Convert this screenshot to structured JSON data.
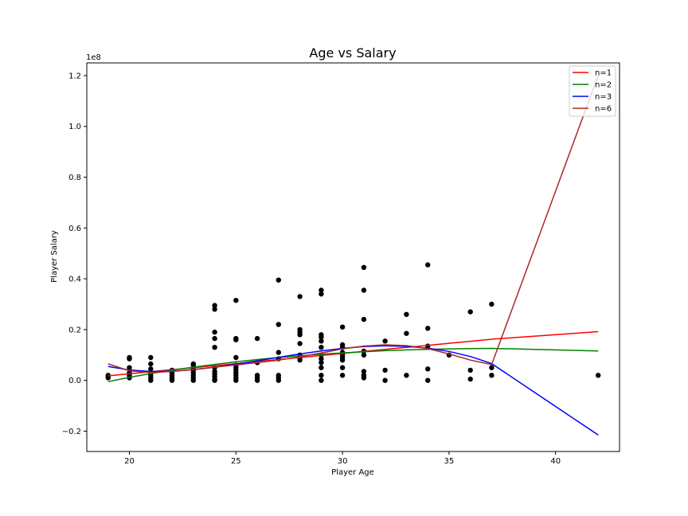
{
  "chart_data": {
    "type": "scatter",
    "title": "Age vs Salary",
    "xlabel": "Player Age",
    "ylabel": "Player Salary",
    "y_offset_label": "1e8",
    "xlim": [
      18,
      43
    ],
    "ylim": [
      -0.28,
      1.25
    ],
    "y_units": "1e8",
    "xticks": [
      20,
      25,
      30,
      35,
      40
    ],
    "yticks": [
      -0.2,
      0.0,
      0.2,
      0.4,
      0.6,
      0.8,
      1.0,
      1.2
    ],
    "ytick_labels": [
      "−0.2",
      "0.0",
      "0.2",
      "0.4",
      "0.6",
      "0.8",
      "1.0",
      "1.2"
    ],
    "grid": false,
    "legend_position": "top-right",
    "points": [
      [
        19,
        0.01
      ],
      [
        19,
        0.02
      ],
      [
        19,
        0.015
      ],
      [
        20,
        0.09
      ],
      [
        20,
        0.085
      ],
      [
        20,
        0.05
      ],
      [
        20,
        0.03
      ],
      [
        20,
        0.02
      ],
      [
        20,
        0.01
      ],
      [
        21,
        0.09
      ],
      [
        21,
        0.065
      ],
      [
        21,
        0.045
      ],
      [
        21,
        0.03
      ],
      [
        21,
        0.02
      ],
      [
        21,
        0.01
      ],
      [
        21,
        0.0
      ],
      [
        22,
        0.04
      ],
      [
        22,
        0.03
      ],
      [
        22,
        0.02
      ],
      [
        22,
        0.01
      ],
      [
        22,
        0.005
      ],
      [
        22,
        0.0
      ],
      [
        23,
        0.065
      ],
      [
        23,
        0.06
      ],
      [
        23,
        0.045
      ],
      [
        23,
        0.04
      ],
      [
        23,
        0.03
      ],
      [
        23,
        0.02
      ],
      [
        23,
        0.01
      ],
      [
        23,
        0.0
      ],
      [
        24,
        0.295
      ],
      [
        24,
        0.28
      ],
      [
        24,
        0.19
      ],
      [
        24,
        0.165
      ],
      [
        24,
        0.13
      ],
      [
        24,
        0.05
      ],
      [
        24,
        0.035
      ],
      [
        24,
        0.025
      ],
      [
        24,
        0.015
      ],
      [
        24,
        0.005
      ],
      [
        24,
        0.0
      ],
      [
        25,
        0.315
      ],
      [
        25,
        0.165
      ],
      [
        25,
        0.16
      ],
      [
        25,
        0.09
      ],
      [
        25,
        0.06
      ],
      [
        25,
        0.05
      ],
      [
        25,
        0.04
      ],
      [
        25,
        0.03
      ],
      [
        25,
        0.02
      ],
      [
        25,
        0.01
      ],
      [
        25,
        0.0
      ],
      [
        26,
        0.165
      ],
      [
        26,
        0.07
      ],
      [
        26,
        0.02
      ],
      [
        26,
        0.01
      ],
      [
        26,
        0.0
      ],
      [
        27,
        0.395
      ],
      [
        27,
        0.22
      ],
      [
        27,
        0.11
      ],
      [
        27,
        0.085
      ],
      [
        27,
        0.02
      ],
      [
        27,
        0.01
      ],
      [
        27,
        0.0
      ],
      [
        28,
        0.33
      ],
      [
        28,
        0.2
      ],
      [
        28,
        0.19
      ],
      [
        28,
        0.18
      ],
      [
        28,
        0.145
      ],
      [
        28,
        0.1
      ],
      [
        28,
        0.09
      ],
      [
        28,
        0.08
      ],
      [
        29,
        0.355
      ],
      [
        29,
        0.34
      ],
      [
        29,
        0.18
      ],
      [
        29,
        0.17
      ],
      [
        29,
        0.155
      ],
      [
        29,
        0.13
      ],
      [
        29,
        0.1
      ],
      [
        29,
        0.085
      ],
      [
        29,
        0.07
      ],
      [
        29,
        0.05
      ],
      [
        29,
        0.02
      ],
      [
        29,
        0.0
      ],
      [
        30,
        0.21
      ],
      [
        30,
        0.14
      ],
      [
        30,
        0.13
      ],
      [
        30,
        0.11
      ],
      [
        30,
        0.1
      ],
      [
        30,
        0.09
      ],
      [
        30,
        0.08
      ],
      [
        30,
        0.05
      ],
      [
        30,
        0.02
      ],
      [
        31,
        0.445
      ],
      [
        31,
        0.355
      ],
      [
        31,
        0.24
      ],
      [
        31,
        0.115
      ],
      [
        31,
        0.1
      ],
      [
        31,
        0.035
      ],
      [
        31,
        0.02
      ],
      [
        31,
        0.01
      ],
      [
        32,
        0.155
      ],
      [
        32,
        0.04
      ],
      [
        32,
        0.0
      ],
      [
        33,
        0.26
      ],
      [
        33,
        0.185
      ],
      [
        33,
        0.02
      ],
      [
        34,
        0.455
      ],
      [
        34,
        0.205
      ],
      [
        34,
        0.135
      ],
      [
        34,
        0.045
      ],
      [
        34,
        0.0
      ],
      [
        35,
        0.1
      ],
      [
        36,
        0.27
      ],
      [
        36,
        0.04
      ],
      [
        36,
        0.005
      ],
      [
        37,
        0.3
      ],
      [
        37,
        0.05
      ],
      [
        37,
        0.02
      ],
      [
        42,
        0.02
      ]
    ],
    "series": [
      {
        "name": "n=1",
        "color": "#ff0000",
        "x": [
          19,
          20,
          21,
          22,
          23,
          24,
          25,
          26,
          27,
          28,
          29,
          30,
          31,
          32,
          33,
          34,
          35,
          36,
          37,
          42
        ],
        "values": [
          0.018,
          0.026,
          0.034,
          0.042,
          0.05,
          0.058,
          0.066,
          0.074,
          0.082,
          0.09,
          0.098,
          0.106,
          0.114,
          0.122,
          0.13,
          0.138,
          0.146,
          0.154,
          0.162,
          0.192
        ]
      },
      {
        "name": "n=2",
        "color": "#008000",
        "x": [
          19,
          20,
          21,
          22,
          23,
          24,
          25,
          26,
          27,
          28,
          29,
          30,
          31,
          32,
          33,
          34,
          35,
          36,
          37,
          42
        ],
        "values": [
          -0.005,
          0.012,
          0.027,
          0.04,
          0.052,
          0.063,
          0.073,
          0.082,
          0.09,
          0.097,
          0.103,
          0.108,
          0.113,
          0.117,
          0.12,
          0.122,
          0.124,
          0.125,
          0.126,
          0.116
        ]
      },
      {
        "name": "n=3",
        "color": "#0000ff",
        "x": [
          19,
          20,
          21,
          22,
          23,
          24,
          25,
          26,
          27,
          28,
          29,
          30,
          31,
          32,
          33,
          34,
          35,
          36,
          37,
          42
        ],
        "values": [
          0.055,
          0.041,
          0.035,
          0.036,
          0.042,
          0.052,
          0.064,
          0.077,
          0.091,
          0.104,
          0.116,
          0.126,
          0.133,
          0.136,
          0.134,
          0.127,
          0.114,
          0.094,
          0.066,
          -0.215
        ]
      },
      {
        "name": "n=6",
        "color": "#a52a2a",
        "x": [
          19,
          20,
          21,
          22,
          23,
          24,
          25,
          26,
          27,
          28,
          29,
          30,
          31,
          32,
          33,
          34,
          35,
          36,
          37,
          42
        ],
        "values": [
          0.065,
          0.038,
          0.031,
          0.035,
          0.043,
          0.052,
          0.061,
          0.07,
          0.08,
          0.093,
          0.108,
          0.124,
          0.135,
          0.14,
          0.137,
          0.125,
          0.104,
          0.08,
          0.062,
          1.2
        ]
      }
    ]
  }
}
